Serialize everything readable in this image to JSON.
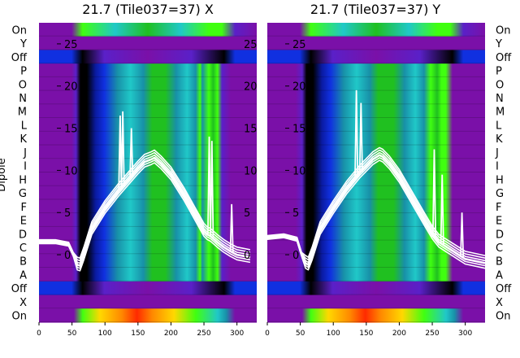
{
  "chart_data": {
    "type": "heatmap",
    "ylabel": "Dipole",
    "row_labels": [
      "On",
      "Y",
      "Off",
      "P",
      "O",
      "N",
      "M",
      "L",
      "K",
      "J",
      "I",
      "H",
      "G",
      "F",
      "E",
      "D",
      "C",
      "B",
      "A",
      "Off",
      "X",
      "On"
    ],
    "xticks": [
      0,
      50,
      100,
      150,
      200,
      250,
      300
    ],
    "xlim": [
      0,
      330
    ],
    "overlay_yticks": [
      25,
      20,
      15,
      10,
      5,
      0
    ],
    "overlay_ylim": [
      -8,
      27.5
    ],
    "panels": [
      {
        "title": "21.7 (Tile037=37) X",
        "side": "left",
        "trace": {
          "x": [
            0,
            25,
            45,
            52,
            58,
            62,
            68,
            80,
            100,
            120,
            140,
            150,
            160,
            170,
            175,
            185,
            200,
            220,
            240,
            250,
            255,
            260,
            270,
            280,
            290,
            300,
            320
          ],
          "y": [
            1.5,
            1.5,
            1.2,
            0.0,
            -1.2,
            -1.3,
            0.0,
            3.0,
            5.5,
            7.5,
            9.3,
            10.2,
            11.0,
            11.3,
            11.5,
            10.8,
            9.5,
            7.0,
            4.2,
            2.8,
            2.4,
            2.2,
            1.5,
            0.9,
            0.4,
            0.0,
            -0.3
          ]
        },
        "spikes": [
          {
            "x": 123,
            "y": 16.5
          },
          {
            "x": 127,
            "y": 17.0
          },
          {
            "x": 140,
            "y": 15.0
          },
          {
            "x": 258,
            "y": 14.0
          },
          {
            "x": 262,
            "y": 13.5
          },
          {
            "x": 292,
            "y": 6.0
          }
        ]
      },
      {
        "title": "21.7 (Tile037=37) Y",
        "side": "right",
        "trace": {
          "x": [
            0,
            25,
            45,
            52,
            58,
            62,
            68,
            80,
            100,
            120,
            140,
            150,
            160,
            170,
            175,
            185,
            200,
            220,
            240,
            250,
            255,
            260,
            270,
            280,
            290,
            300,
            330
          ],
          "y": [
            2.0,
            2.2,
            1.8,
            0.0,
            -1.0,
            -1.2,
            0.0,
            3.0,
            5.5,
            7.8,
            9.7,
            10.5,
            11.3,
            11.8,
            11.6,
            10.8,
            9.2,
            6.5,
            3.8,
            2.5,
            2.0,
            1.5,
            1.0,
            0.5,
            0.0,
            -0.5,
            -1.0
          ]
        },
        "spikes": [
          {
            "x": 135,
            "y": 19.5
          },
          {
            "x": 142,
            "y": 18.0
          },
          {
            "x": 253,
            "y": 12.5
          },
          {
            "x": 265,
            "y": 9.5
          },
          {
            "x": 295,
            "y": 5.0
          }
        ]
      }
    ]
  },
  "colors": {
    "purple": "#7a10a8",
    "violet": "#5a20c8",
    "blue": "#1030e0",
    "deep_blue": "#0a1aa0",
    "teal": "#1890a8",
    "cyan": "#20c8c8",
    "green": "#20c020",
    "bright_green": "#40ff10",
    "black": "#000000",
    "orange": "#ff8800",
    "red": "#ff2a00",
    "yellow": "#ffd800",
    "trace": "#ffffff"
  }
}
